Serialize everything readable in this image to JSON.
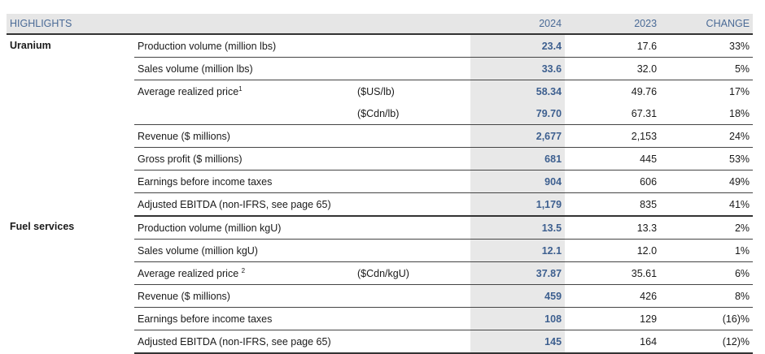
{
  "header": {
    "title": "HIGHLIGHTS",
    "col_2024": "2024",
    "col_2023": "2023",
    "col_change": "CHANGE"
  },
  "sections": [
    {
      "name": "Uranium",
      "rows": [
        {
          "label": "Production volume (million lbs)",
          "unit": "",
          "v2024": "23.4",
          "v2023": "17.6",
          "change": "33%"
        },
        {
          "label": "Sales volume (million lbs)",
          "unit": "",
          "v2024": "33.6",
          "v2023": "32.0",
          "change": "5%"
        },
        {
          "label": "Average realized price",
          "sup": "1",
          "unit": "($US/lb)",
          "v2024": "58.34",
          "v2023": "49.76",
          "change": "17%"
        },
        {
          "label": "",
          "unit": "($Cdn/lb)",
          "v2024": "79.70",
          "v2023": "67.31",
          "change": "18%"
        },
        {
          "label": "Revenue ($ millions)",
          "unit": "",
          "v2024": "2,677",
          "v2023": "2,153",
          "change": "24%"
        },
        {
          "label": "Gross profit ($ millions)",
          "unit": "",
          "v2024": "681",
          "v2023": "445",
          "change": "53%"
        },
        {
          "label": "Earnings before income taxes",
          "unit": "",
          "v2024": "904",
          "v2023": "606",
          "change": "49%"
        },
        {
          "label": "Adjusted EBITDA (non-IFRS, see page 65)",
          "unit": "",
          "v2024": "1,179",
          "v2023": "835",
          "change": "41%"
        }
      ]
    },
    {
      "name": "Fuel services",
      "rows": [
        {
          "label": "Production volume (million kgU)",
          "unit": "",
          "v2024": "13.5",
          "v2023": "13.3",
          "change": "2%"
        },
        {
          "label": "Sales volume (million kgU)",
          "unit": "",
          "v2024": "12.1",
          "v2023": "12.0",
          "change": "1%"
        },
        {
          "label": "Average realized price ",
          "sup": "2",
          "unit": "($Cdn/kgU)",
          "v2024": "37.87",
          "v2023": "35.61",
          "change": "6%"
        },
        {
          "label": "Revenue ($ millions)",
          "unit": "",
          "v2024": "459",
          "v2023": "426",
          "change": "8%"
        },
        {
          "label": "Earnings before income taxes",
          "unit": "",
          "v2024": "108",
          "v2023": "129",
          "change": "(16)%"
        },
        {
          "label": "Adjusted EBITDA (non-IFRS, see page 65)",
          "unit": "",
          "v2024": "145",
          "v2023": "164",
          "change": "(12)%"
        }
      ]
    }
  ]
}
